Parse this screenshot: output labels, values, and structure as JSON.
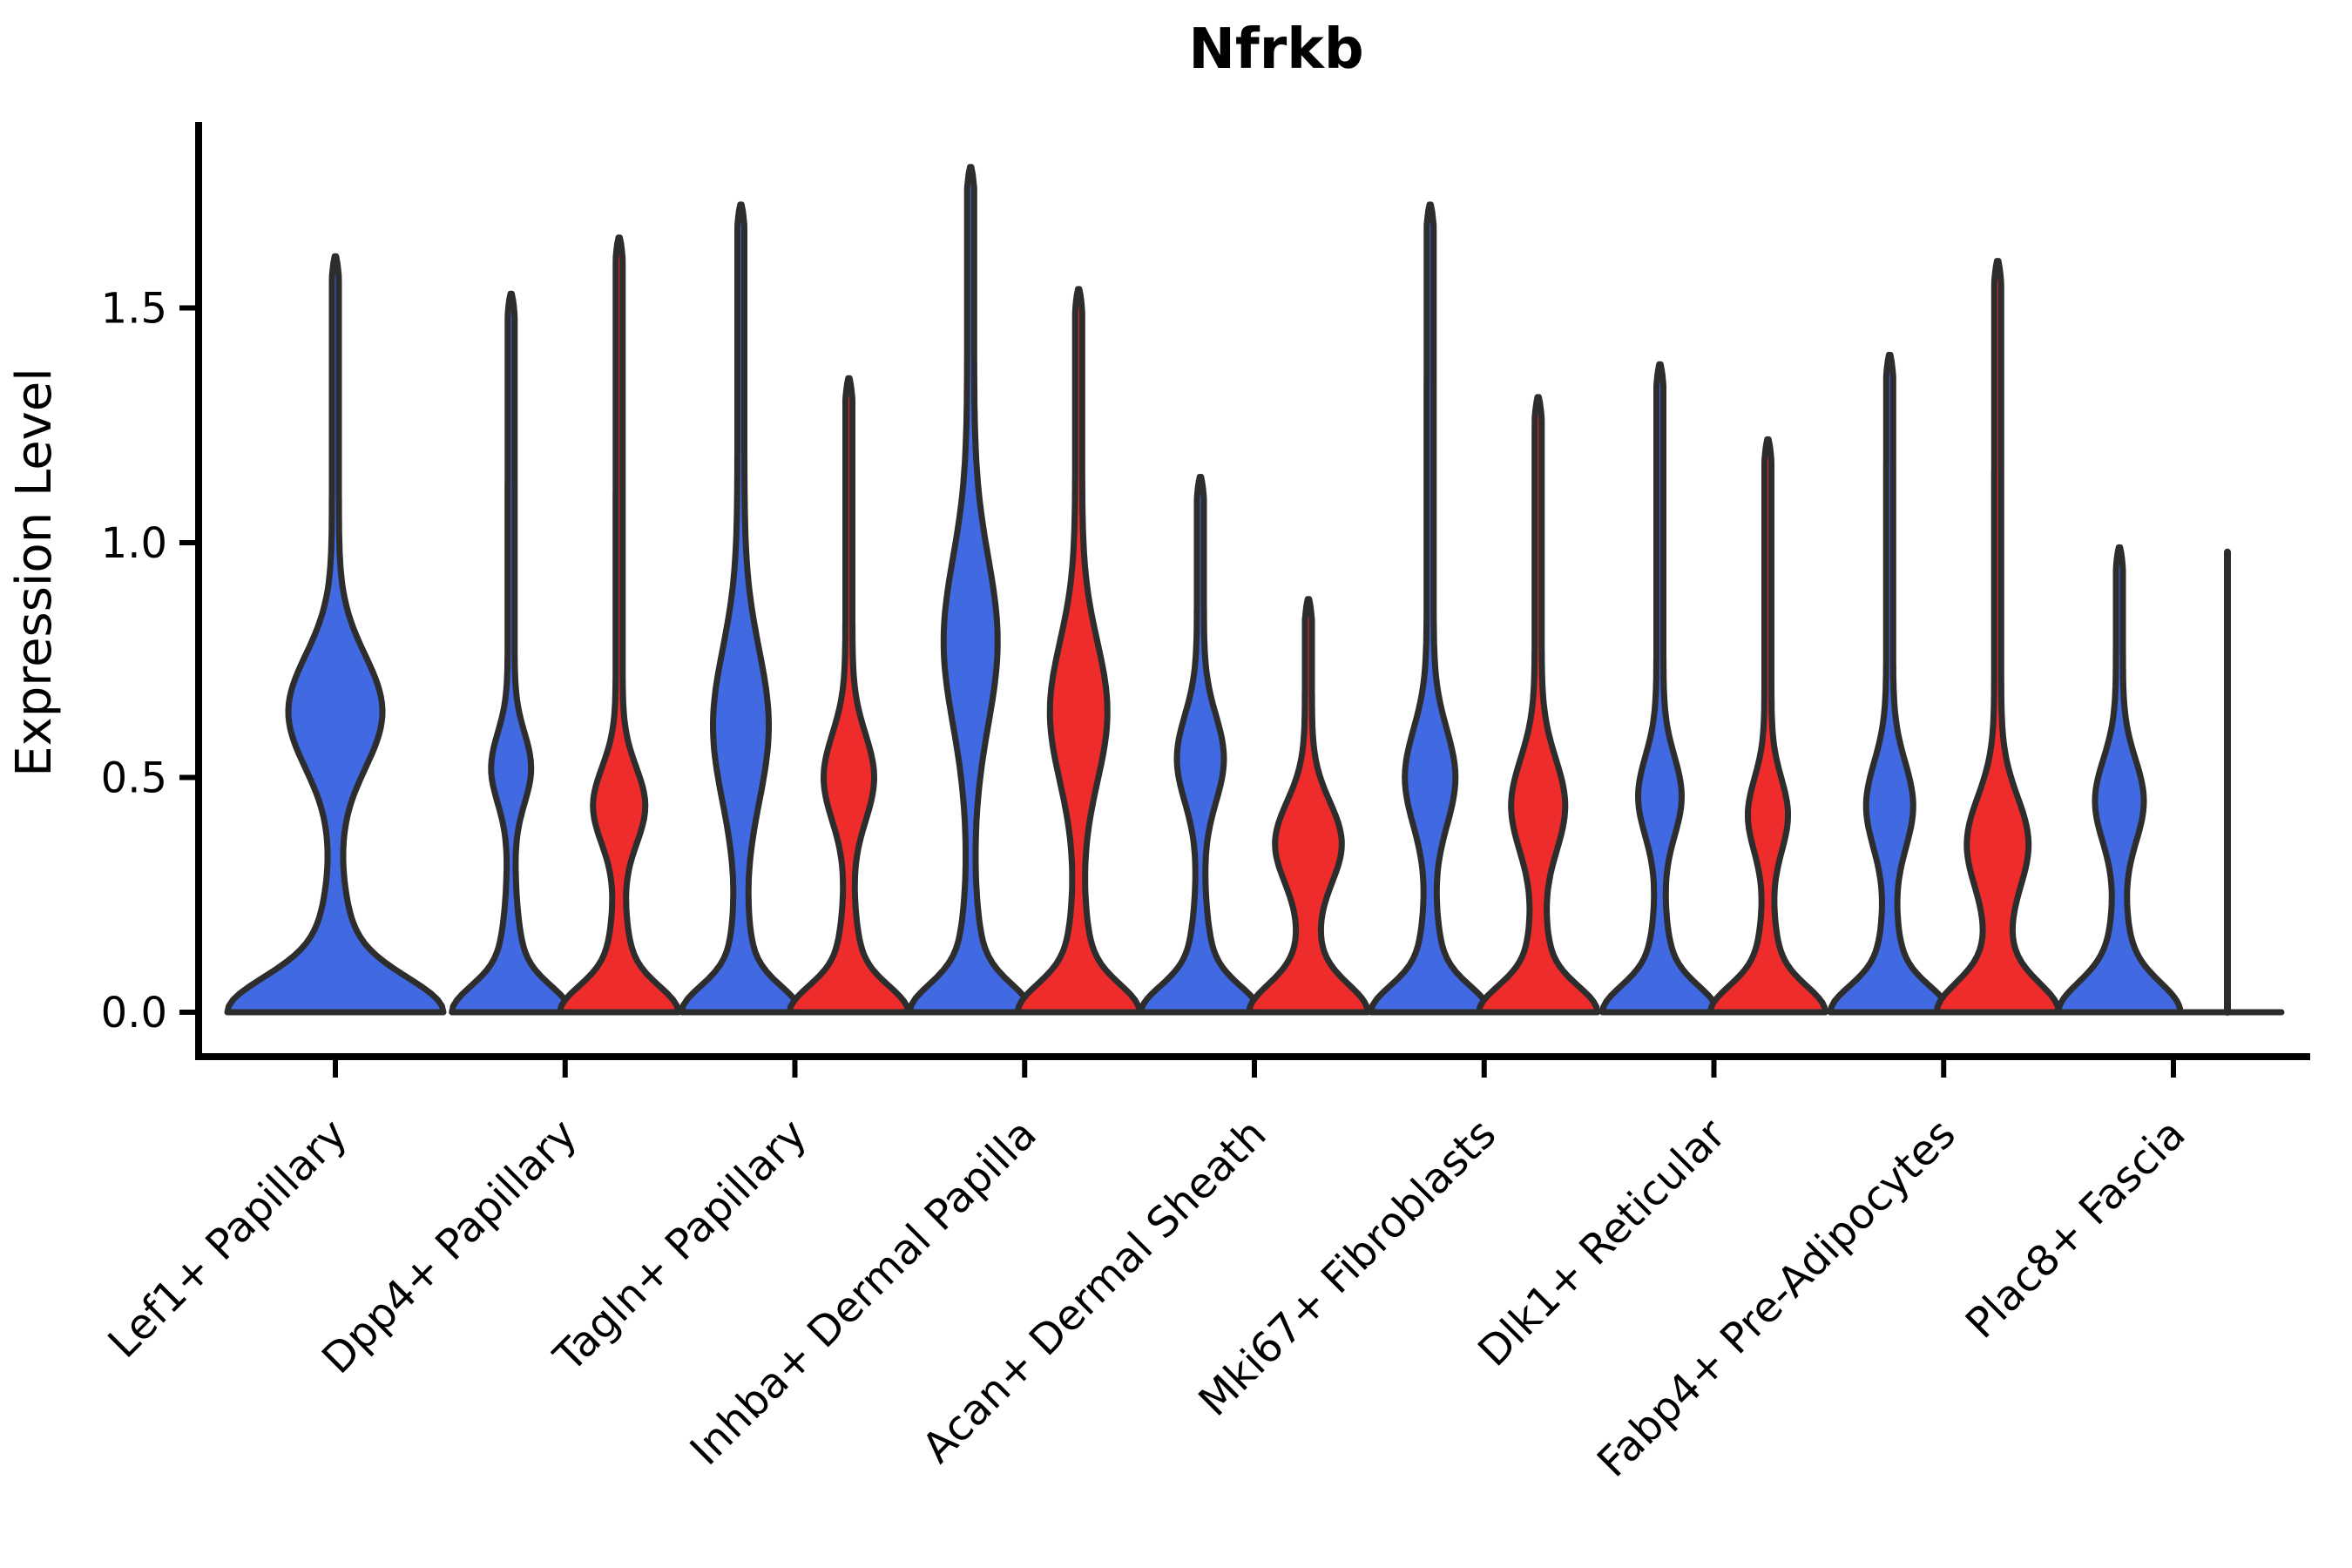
{
  "page": {
    "background": "#ffffff"
  },
  "chart_data": {
    "type": "violin",
    "title": "Nfrkb",
    "ylabel": "Expression Level",
    "xlabel": "",
    "grid": false,
    "legend_position": "none",
    "ylim": [
      0,
      1.9
    ],
    "ytick_labels": [
      "0.0",
      "0.5",
      "1.0",
      "1.5"
    ],
    "ytick_values": [
      0.0,
      0.5,
      1.0,
      1.5
    ],
    "categories": [
      "Lef1+ Papillary",
      "Dpp4+ Papillary",
      "Tagln+ Papillary",
      "Inhba+ Dermal Papilla",
      "Acan+ Dermal Sheath",
      "Mki67+ Fibroblasts",
      "Dlk1+ Reticular",
      "Fabp4+ Pre-Adipocytes",
      "Plac8+ Fascia"
    ],
    "groups": [
      "condition-blue",
      "condition-red"
    ],
    "colors": {
      "blue_fill": "#4169E1",
      "red_fill": "#EE2C2C",
      "outline": "#2D2D2D",
      "axis": "#000000"
    },
    "violins": [
      {
        "category_index": 0,
        "category": "Lef1+ Papillary",
        "group": "condition-blue",
        "color_key": "blue_fill",
        "shape": "violin",
        "dx": 0,
        "max": 1.61,
        "zero_inflated": true,
        "mode_nonzero": 0.64,
        "nonzero_range": [
          0.35,
          0.95
        ],
        "bw": 120,
        "b1": 0.1,
        "b2": 0.22,
        "bc": 0.64,
        "ba": 50,
        "bs": 0.17
      },
      {
        "category_index": 1,
        "category": "Dpp4+ Papillary",
        "group": "condition-blue",
        "color_key": "blue_fill",
        "shape": "violin",
        "dx": -62,
        "max": 1.53,
        "zero_inflated": true,
        "mode_nonzero": 0.52,
        "nonzero_range": [
          0.33,
          0.7
        ],
        "bw": 64,
        "b1": 0.075,
        "b2": 0.18,
        "bc": 0.52,
        "ba": 19,
        "bs": 0.105
      },
      {
        "category_index": 1,
        "category": "Dpp4+ Papillary",
        "group": "condition-red",
        "color_key": "red_fill",
        "shape": "violin",
        "dx": 62,
        "max": 1.65,
        "zero_inflated": true,
        "mode_nonzero": 0.44,
        "nonzero_range": [
          0.25,
          0.63
        ],
        "bw": 64,
        "b1": 0.075,
        "b2": 0.18,
        "bc": 0.44,
        "ba": 26,
        "bs": 0.115
      },
      {
        "category_index": 2,
        "category": "Tagln+ Papillary",
        "group": "condition-blue",
        "color_key": "blue_fill",
        "shape": "violin",
        "dx": -62,
        "max": 1.72,
        "zero_inflated": true,
        "mode_nonzero": 0.61,
        "nonzero_range": [
          0.27,
          1.06
        ],
        "bw": 64,
        "b1": 0.075,
        "b2": 0.18,
        "bc": 0.61,
        "ba": 28,
        "bs": 0.23
      },
      {
        "category_index": 2,
        "category": "Tagln+ Papillary",
        "group": "condition-red",
        "color_key": "red_fill",
        "shape": "violin",
        "dx": 62,
        "max": 1.35,
        "zero_inflated": true,
        "mode_nonzero": 0.5,
        "nonzero_range": [
          0.28,
          0.76
        ],
        "bw": 64,
        "b1": 0.075,
        "b2": 0.18,
        "bc": 0.5,
        "ba": 25,
        "bs": 0.13
      },
      {
        "category_index": 3,
        "category": "Inhba+ Dermal Papilla",
        "group": "condition-blue",
        "color_key": "blue_fill",
        "shape": "violin",
        "dx": -62,
        "max": 1.8,
        "zero_inflated": true,
        "mode_nonzero": 0.79,
        "nonzero_range": [
          0.34,
          1.25
        ],
        "bw": 66,
        "b1": 0.08,
        "b2": 0.19,
        "bc": 0.79,
        "ba": 27,
        "bs": 0.25
      },
      {
        "category_index": 3,
        "category": "Inhba+ Dermal Papilla",
        "group": "condition-red",
        "color_key": "red_fill",
        "shape": "violin",
        "dx": 62,
        "max": 1.54,
        "zero_inflated": true,
        "mode_nonzero": 0.64,
        "nonzero_range": [
          0.28,
          1.05
        ],
        "bw": 66,
        "b1": 0.08,
        "b2": 0.19,
        "bc": 0.64,
        "ba": 29,
        "bs": 0.21
      },
      {
        "category_index": 4,
        "category": "Acan+ Dermal Sheath",
        "group": "condition-blue",
        "color_key": "blue_fill",
        "shape": "violin",
        "dx": -62,
        "max": 1.14,
        "zero_inflated": true,
        "mode_nonzero": 0.54,
        "nonzero_range": [
          0.27,
          0.76
        ],
        "bw": 64,
        "b1": 0.075,
        "b2": 0.18,
        "bc": 0.54,
        "ba": 23,
        "bs": 0.13
      },
      {
        "category_index": 4,
        "category": "Acan+ Dermal Sheath",
        "group": "condition-red",
        "color_key": "red_fill",
        "shape": "violin",
        "dx": 62,
        "max": 0.88,
        "zero_inflated": true,
        "mode_nonzero": 0.36,
        "nonzero_range": [
          0.15,
          0.6
        ],
        "bw": 64,
        "b1": 0.08,
        "b2": 0.18,
        "bc": 0.36,
        "ba": 34,
        "bs": 0.125
      },
      {
        "category_index": 5,
        "category": "Mki67+ Fibroblasts",
        "group": "condition-blue",
        "color_key": "blue_fill",
        "shape": "violin",
        "dx": -62,
        "max": 1.72,
        "zero_inflated": true,
        "mode_nonzero": 0.5,
        "nonzero_range": [
          0.2,
          0.8
        ],
        "bw": 64,
        "b1": 0.075,
        "b2": 0.18,
        "bc": 0.5,
        "ba": 25,
        "bs": 0.145
      },
      {
        "category_index": 5,
        "category": "Mki67+ Fibroblasts",
        "group": "condition-red",
        "color_key": "red_fill",
        "shape": "violin",
        "dx": 62,
        "max": 1.31,
        "zero_inflated": true,
        "mode_nonzero": 0.44,
        "nonzero_range": [
          0.2,
          0.72
        ],
        "bw": 64,
        "b1": 0.075,
        "b2": 0.18,
        "bc": 0.44,
        "ba": 27,
        "bs": 0.14
      },
      {
        "category_index": 6,
        "category": "Dlk1+ Reticular",
        "group": "condition-blue",
        "color_key": "blue_fill",
        "shape": "violin",
        "dx": -62,
        "max": 1.38,
        "zero_inflated": true,
        "mode_nonzero": 0.46,
        "nonzero_range": [
          0.22,
          0.72
        ],
        "bw": 62,
        "b1": 0.075,
        "b2": 0.17,
        "bc": 0.46,
        "ba": 21,
        "bs": 0.12
      },
      {
        "category_index": 6,
        "category": "Dlk1+ Reticular",
        "group": "condition-red",
        "color_key": "red_fill",
        "shape": "violin",
        "dx": 62,
        "max": 1.22,
        "zero_inflated": true,
        "mode_nonzero": 0.42,
        "nonzero_range": [
          0.25,
          0.65
        ],
        "bw": 62,
        "b1": 0.075,
        "b2": 0.17,
        "bc": 0.42,
        "ba": 19,
        "bs": 0.11
      },
      {
        "category_index": 7,
        "category": "Fabp4+ Pre-Adipocytes",
        "group": "condition-blue",
        "color_key": "blue_fill",
        "shape": "violin",
        "dx": -62,
        "max": 1.4,
        "zero_inflated": true,
        "mode_nonzero": 0.44,
        "nonzero_range": [
          0.2,
          0.72
        ],
        "bw": 64,
        "b1": 0.075,
        "b2": 0.18,
        "bc": 0.44,
        "ba": 23,
        "bs": 0.13
      },
      {
        "category_index": 7,
        "category": "Fabp4+ Pre-Adipocytes",
        "group": "condition-red",
        "color_key": "red_fill",
        "shape": "violin",
        "dx": 62,
        "max": 1.6,
        "zero_inflated": true,
        "mode_nonzero": 0.36,
        "nonzero_range": [
          0.12,
          0.62
        ],
        "bw": 66,
        "b1": 0.085,
        "b2": 0.19,
        "bc": 0.36,
        "ba": 31,
        "bs": 0.14
      },
      {
        "category_index": 8,
        "category": "Plac8+ Fascia",
        "group": "condition-blue",
        "color_key": "blue_fill",
        "shape": "violin",
        "dx": -62,
        "max": 0.99,
        "zero_inflated": true,
        "mode_nonzero": 0.45,
        "nonzero_range": [
          0.27,
          0.63
        ],
        "bw": 66,
        "b1": 0.085,
        "b2": 0.19,
        "bc": 0.45,
        "ba": 24,
        "bs": 0.125
      },
      {
        "category_index": 8,
        "category": "Plac8+ Fascia",
        "group": "condition-red",
        "color_key": "red_fill",
        "shape": "line",
        "dx": 62,
        "max": 0.98,
        "zero_inflated": true,
        "mode_nonzero": 0,
        "nonzero_range": [
          0,
          0.98
        ],
        "bw": 62
      }
    ]
  }
}
